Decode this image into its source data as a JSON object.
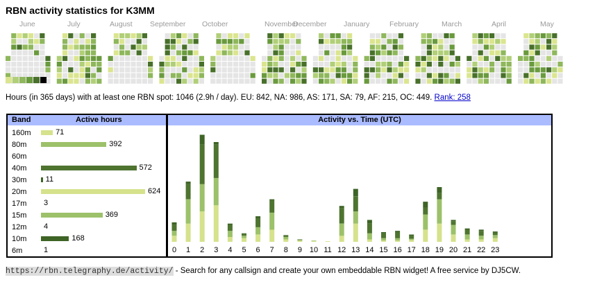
{
  "title": "RBN activity statistics for K3MM",
  "colors": {
    "empty": "#e5e5e5",
    "scale": [
      "#dbe58f",
      "#b1cf78",
      "#8fb75c",
      "#6a9a3e",
      "#48702a",
      "#000000"
    ],
    "highlight": "#cc4422",
    "header_bg": "#aabbff",
    "band_160m": "#d6e28c",
    "band_80m": "#9cc16a",
    "band_40m": "#4e7430",
    "band_30m": "#3e6426",
    "band_20m": "#d6e28c",
    "band_15m": "#9cc16a",
    "band_10m": "#3e6426"
  },
  "heatmap": {
    "months": [
      "June",
      "July",
      "August",
      "September",
      "October",
      "November",
      "December",
      "January",
      "February",
      "March",
      "April",
      "May"
    ]
  },
  "summary": {
    "text": "Hours (in 365 days) with at least one RBN spot: 1046 (2.9h / day). EU: 842, NA: 986, AS: 171, SA: 79, AF: 215, OC: 449.",
    "rank_link": "Rank: 258"
  },
  "band_panel": {
    "header_band": "Band",
    "header_hours": "Active hours",
    "rows": [
      {
        "band": "160m",
        "hours": 71,
        "label": "71",
        "color": "#d6e28c"
      },
      {
        "band": "80m",
        "hours": 392,
        "label": "392",
        "color": "#9cc16a"
      },
      {
        "band": "60m",
        "hours": 0,
        "label": "",
        "color": "#9cc16a"
      },
      {
        "band": "40m",
        "hours": 572,
        "label": "572",
        "color": "#4e7430"
      },
      {
        "band": "30m",
        "hours": 11,
        "label": "11",
        "color": "#3e6426"
      },
      {
        "band": "20m",
        "hours": 624,
        "label": "624",
        "color": "#d6e28c"
      },
      {
        "band": "17m",
        "hours": 3,
        "label": "3",
        "color": "#9cc16a"
      },
      {
        "band": "15m",
        "hours": 369,
        "label": "369",
        "color": "#9cc16a"
      },
      {
        "band": "12m",
        "hours": 4,
        "label": "4",
        "color": "#9cc16a"
      },
      {
        "band": "10m",
        "hours": 168,
        "label": "168",
        "color": "#3e6426"
      },
      {
        "band": "6m",
        "hours": 1,
        "label": "1",
        "color": "#9cc16a"
      }
    ]
  },
  "time_panel": {
    "header": "Activity vs. Time (UTC)"
  },
  "chart_data": {
    "type": "bar",
    "stacked": true,
    "categories": [
      "0",
      "1",
      "2",
      "3",
      "4",
      "5",
      "6",
      "7",
      "8",
      "9",
      "10",
      "11",
      "12",
      "13",
      "14",
      "15",
      "16",
      "17",
      "18",
      "19",
      "20",
      "21",
      "22",
      "23"
    ],
    "series": [
      {
        "color": "#d6e28c",
        "values": [
          10,
          30,
          50,
          60,
          8,
          6,
          12,
          20,
          4,
          2,
          1,
          1,
          10,
          30,
          4,
          2,
          2,
          3,
          20,
          30,
          12,
          4,
          4,
          6
        ]
      },
      {
        "color": "#9cc16a",
        "values": [
          8,
          40,
          45,
          45,
          10,
          4,
          12,
          28,
          4,
          1,
          1,
          0,
          20,
          20,
          10,
          4,
          4,
          2,
          25,
          40,
          16,
          8,
          6,
          5
        ]
      },
      {
        "color": "#4e7430",
        "values": [
          10,
          25,
          65,
          55,
          10,
          3,
          14,
          20,
          2,
          1,
          0,
          0,
          25,
          25,
          16,
          8,
          10,
          5,
          11,
          10,
          6,
          8,
          8,
          4
        ]
      },
      {
        "color": "#3e6426",
        "values": [
          4,
          4,
          16,
          4,
          2,
          1,
          4,
          2,
          1,
          0,
          0,
          0,
          4,
          12,
          6,
          2,
          2,
          2,
          10,
          10,
          2,
          2,
          2,
          2
        ]
      }
    ]
  },
  "footer": {
    "url": "https://rbn.telegraphy.de/activity/",
    "text": " - Search for any callsign and create your own embeddable RBN widget! A free service by DJ5CW."
  }
}
